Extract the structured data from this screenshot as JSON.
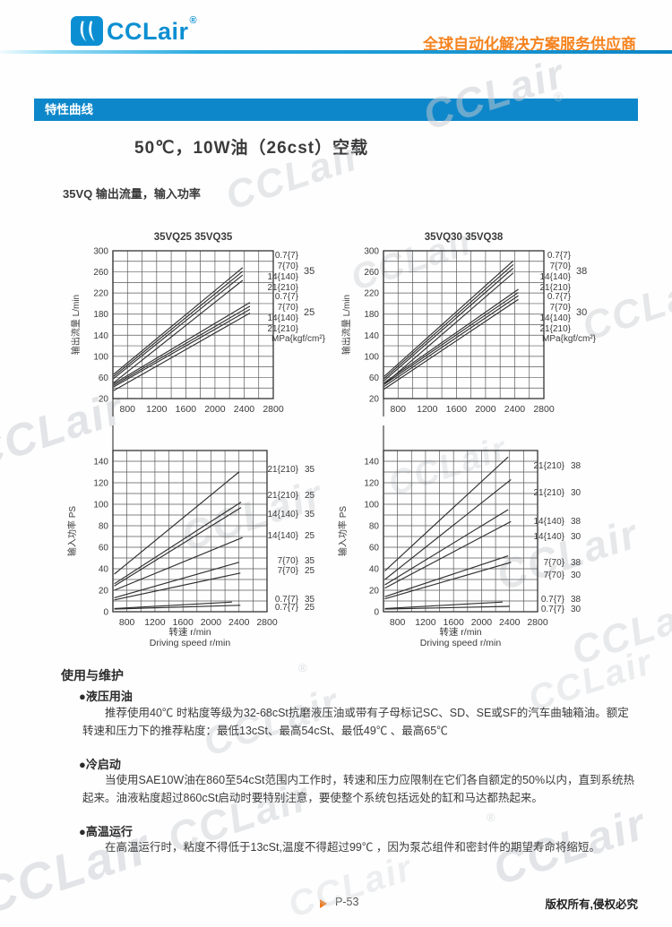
{
  "header": {
    "logo_text": "CCLair",
    "logo_reg": "®",
    "slogan": "全球自动化解决方案服务供应商"
  },
  "banner": {
    "label": "特性曲线"
  },
  "page": {
    "title": "50℃，10W油（26cst）空载",
    "subtitle": "35VQ 输出流量，输入功率"
  },
  "colors": {
    "brand_blue": "#0c8fd2",
    "banner_blue": "#0e87ca",
    "accent_orange": "#f5831f",
    "chart_ink": "#333333",
    "grid_gray": "#5a5a5a"
  },
  "chart_data": [
    {
      "type": "line",
      "title": "35VQ25  35VQ35",
      "ylabel": "输出流量 L/min",
      "xlim": [
        600,
        2800
      ],
      "ylim": [
        20,
        300
      ],
      "xgrid": 200,
      "ygrid": 20,
      "xticks": [
        800,
        1200,
        1600,
        2000,
        2400,
        2800
      ],
      "yticks": [
        20,
        60,
        100,
        140,
        180,
        220,
        260,
        300
      ],
      "unit_label": "MPa{kgf/cm²}",
      "legend_groups": [
        {
          "size": "35",
          "pressures": [
            "0.7{7}",
            "7{70}",
            "14{140}",
            "21{210}"
          ]
        },
        {
          "size": "25",
          "pressures": [
            "0.7{7}",
            "7{70}",
            "14{140}",
            "21{210}"
          ]
        }
      ],
      "series": [
        {
          "name": "35VQ35 0.7{7}",
          "points": [
            [
              610,
              66
            ],
            [
              2380,
              268
            ]
          ]
        },
        {
          "name": "35VQ35 7{70}",
          "points": [
            [
              610,
              62
            ],
            [
              2380,
              261
            ]
          ]
        },
        {
          "name": "35VQ35 14{140}",
          "points": [
            [
              610,
              58
            ],
            [
              2380,
              254
            ]
          ]
        },
        {
          "name": "35VQ35 21{210}",
          "points": [
            [
              610,
              50
            ],
            [
              2380,
              244
            ]
          ]
        },
        {
          "name": "35VQ25 0.7{7}",
          "points": [
            [
              610,
              48
            ],
            [
              2480,
              202
            ]
          ]
        },
        {
          "name": "35VQ25 7{70}",
          "points": [
            [
              610,
              45
            ],
            [
              2480,
              195
            ]
          ]
        },
        {
          "name": "35VQ25 14{140}",
          "points": [
            [
              610,
              42
            ],
            [
              2480,
              189
            ]
          ]
        },
        {
          "name": "35VQ25 21{210}",
          "points": [
            [
              610,
              35
            ],
            [
              2480,
              182
            ]
          ]
        }
      ]
    },
    {
      "type": "line",
      "title": "35VQ30  35VQ38",
      "ylabel": "输出流量 L/min",
      "xlim": [
        600,
        2800
      ],
      "ylim": [
        20,
        300
      ],
      "xgrid": 200,
      "ygrid": 20,
      "xticks": [
        800,
        1200,
        1600,
        2000,
        2400,
        2800
      ],
      "yticks": [
        20,
        60,
        100,
        140,
        180,
        220,
        260,
        300
      ],
      "unit_label": "MPa{kgf/cm²}",
      "legend_groups": [
        {
          "size": "38",
          "pressures": [
            "0.7{7}",
            "7{70}",
            "14{140}",
            "21{210}"
          ]
        },
        {
          "size": "30",
          "pressures": [
            "0.7{7}",
            "7{70}",
            "14{140}",
            "21{210}"
          ]
        }
      ],
      "series": [
        {
          "name": "35VQ38 0.7{7}",
          "points": [
            [
              610,
              62
            ],
            [
              2380,
              281
            ]
          ]
        },
        {
          "name": "35VQ38 7{70}",
          "points": [
            [
              610,
              58
            ],
            [
              2380,
              274
            ]
          ]
        },
        {
          "name": "35VQ38 14{140}",
          "points": [
            [
              610,
              54
            ],
            [
              2380,
              267
            ]
          ]
        },
        {
          "name": "35VQ38 21{210}",
          "points": [
            [
              610,
              47
            ],
            [
              2380,
              258
            ]
          ]
        },
        {
          "name": "35VQ30 0.7{7}",
          "points": [
            [
              610,
              50
            ],
            [
              2450,
              227
            ]
          ]
        },
        {
          "name": "35VQ30 7{70}",
          "points": [
            [
              610,
              47
            ],
            [
              2450,
              221
            ]
          ]
        },
        {
          "name": "35VQ30 14{140}",
          "points": [
            [
              610,
              43
            ],
            [
              2450,
              215
            ]
          ]
        },
        {
          "name": "35VQ30 21{210}",
          "points": [
            [
              610,
              38
            ],
            [
              2450,
              208
            ]
          ]
        }
      ]
    },
    {
      "type": "line",
      "title": "",
      "ylabel": "输入功率 PS",
      "xlabel_cn": "转速  r/min",
      "xlabel_en": "Driving speed r/min",
      "xlim": [
        600,
        2800
      ],
      "ylim": [
        0,
        150
      ],
      "xgrid": 200,
      "ygrid": 10,
      "xticks": [
        800,
        1200,
        1600,
        2000,
        2400,
        2800
      ],
      "yticks": [
        0,
        20,
        40,
        60,
        80,
        100,
        120,
        140
      ],
      "legend_items": [
        {
          "label": "21{210}",
          "size": "35"
        },
        {
          "label": "21{210}",
          "size": "25"
        },
        {
          "label": "14{140}",
          "size": "35"
        },
        {
          "label": "14{140}",
          "size": "25"
        },
        {
          "label": "7{70}",
          "size": "35"
        },
        {
          "label": "7{70}",
          "size": "25"
        },
        {
          "label": "0.7{7}",
          "size": "35"
        },
        {
          "label": "0.7{7}",
          "size": "25"
        }
      ],
      "series": [
        {
          "name": "21{210} 35",
          "points": [
            [
              620,
              35
            ],
            [
              2400,
              130
            ]
          ]
        },
        {
          "name": "21{210} 25",
          "points": [
            [
              620,
              26
            ],
            [
              2430,
              102
            ]
          ]
        },
        {
          "name": "14{140} 35",
          "points": [
            [
              620,
              24
            ],
            [
              2430,
              97
            ]
          ]
        },
        {
          "name": "14{140} 25",
          "points": [
            [
              620,
              20
            ],
            [
              2450,
              69
            ]
          ]
        },
        {
          "name": "7{70} 35",
          "points": [
            [
              620,
              13
            ],
            [
              2400,
              46
            ]
          ]
        },
        {
          "name": "7{70} 25",
          "points": [
            [
              620,
              11
            ],
            [
              2420,
              36
            ]
          ]
        },
        {
          "name": "0.7{7} 35",
          "points": [
            [
              620,
              3
            ],
            [
              2300,
              9
            ]
          ]
        },
        {
          "name": "0.7{7} 25",
          "points": [
            [
              620,
              2.5
            ],
            [
              2420,
              6
            ]
          ]
        }
      ]
    },
    {
      "type": "line",
      "title": "",
      "ylabel": "输入功率 PS",
      "xlabel_cn": "转速  r/min",
      "xlabel_en": "Driving speed r/min",
      "xlim": [
        600,
        2800
      ],
      "ylim": [
        0,
        150
      ],
      "xgrid": 200,
      "ygrid": 10,
      "xticks": [
        800,
        1200,
        1600,
        2000,
        2400,
        2800
      ],
      "yticks": [
        0,
        20,
        40,
        60,
        80,
        100,
        120,
        140
      ],
      "legend_items": [
        {
          "label": "21{210}",
          "size": "38"
        },
        {
          "label": "21{210}",
          "size": "30"
        },
        {
          "label": "14{140}",
          "size": "38"
        },
        {
          "label": "14{140}",
          "size": "30"
        },
        {
          "label": "7{70}",
          "size": "38"
        },
        {
          "label": "7{70}",
          "size": "30"
        },
        {
          "label": "0.7{7}",
          "size": "38"
        },
        {
          "label": "0.7{7}",
          "size": "30"
        }
      ],
      "series": [
        {
          "name": "21{210} 38",
          "points": [
            [
              620,
              38
            ],
            [
              2380,
              144
            ]
          ]
        },
        {
          "name": "21{210} 30",
          "points": [
            [
              620,
              30
            ],
            [
              2420,
              123
            ]
          ]
        },
        {
          "name": "14{140} 38",
          "points": [
            [
              620,
              25
            ],
            [
              2380,
              95
            ]
          ]
        },
        {
          "name": "14{140} 30",
          "points": [
            [
              620,
              22
            ],
            [
              2420,
              84
            ]
          ]
        },
        {
          "name": "7{70} 38",
          "points": [
            [
              620,
              14
            ],
            [
              2380,
              52
            ]
          ]
        },
        {
          "name": "7{70} 30",
          "points": [
            [
              620,
              12
            ],
            [
              2420,
              46
            ]
          ]
        },
        {
          "name": "0.7{7} 38",
          "points": [
            [
              620,
              3
            ],
            [
              2300,
              9
            ]
          ]
        },
        {
          "name": "0.7{7} 30",
          "points": [
            [
              620,
              2.5
            ],
            [
              2400,
              5
            ]
          ]
        }
      ]
    }
  ],
  "usage": {
    "heading": "使用与维护",
    "bullet": "●",
    "sections": [
      {
        "title": "液压用油",
        "body": "推荐使用40℃ 时粘度等级为32-68cSt抗磨液压油或带有子母标记SC、SD、SE或SF的汽车曲轴箱油。额定转速和压力下的推荐粘度：最低13cSt、最高54cSt、最低49℃ 、最高65℃"
      },
      {
        "title": "冷启动",
        "body": "当使用SAE10W油在860至54cSt范围内工作时，转速和压力应限制在它们各自额定的50%以内，直到系统热起来。油液粘度超过860cSt启动时要特别注意，要使整个系统包括远处的缸和马达都热起来。"
      },
      {
        "title": "高温运行",
        "body": "在高温运行时，粘度不得低于13cSt,温度不得超过99℃ ，因为泵芯组件和密封件的期望寿命将缩短。"
      }
    ]
  },
  "footer": {
    "page_label": "P-53",
    "copyright": "版权所有,侵权必究"
  },
  "watermark": {
    "text": "CCLair",
    "reg": "®"
  }
}
